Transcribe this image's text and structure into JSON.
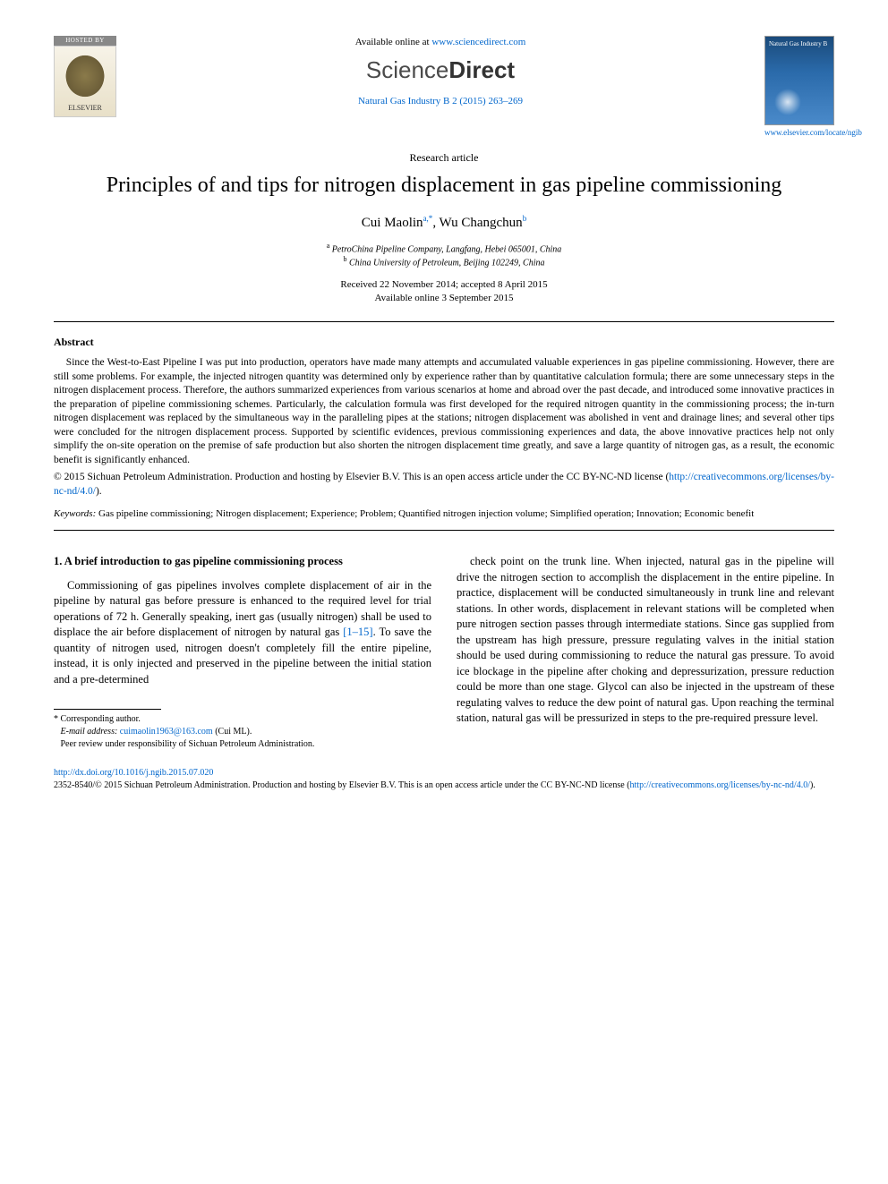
{
  "header": {
    "hosted_label": "HOSTED BY",
    "elsevier_name": "ELSEVIER",
    "available_prefix": "Available online at ",
    "available_url": "www.sciencedirect.com",
    "sd_logo_light": "Science",
    "sd_logo_bold": "Direct",
    "journal_ref": "Natural Gas Industry B 2 (2015) 263–269",
    "cover_title": "Natural Gas Industry B",
    "cover_link": "www.elsevier.com/locate/ngib"
  },
  "meta": {
    "article_type": "Research article",
    "title": "Principles of and tips for nitrogen displacement in gas pipeline commissioning",
    "authors_html": "Cui Maolin<sup>a,*</sup>, Wu Changchun<sup>b</sup>",
    "author1": "Cui Maolin",
    "author1_sup": "a,*",
    "author2": "Wu Changchun",
    "author2_sup": "b",
    "affil_a_sup": "a",
    "affil_a": "PetroChina Pipeline Company, Langfang, Hebei 065001, China",
    "affil_b_sup": "b",
    "affil_b": "China University of Petroleum, Beijing 102249, China",
    "dates_line1": "Received 22 November 2014; accepted 8 April 2015",
    "dates_line2": "Available online 3 September 2015"
  },
  "abstract": {
    "heading": "Abstract",
    "body": "Since the West-to-East Pipeline I was put into production, operators have made many attempts and accumulated valuable experiences in gas pipeline commissioning. However, there are still some problems. For example, the injected nitrogen quantity was determined only by experience rather than by quantitative calculation formula; there are some unnecessary steps in the nitrogen displacement process. Therefore, the authors summarized experiences from various scenarios at home and abroad over the past decade, and introduced some innovative practices in the preparation of pipeline commissioning schemes. Particularly, the calculation formula was first developed for the required nitrogen quantity in the commissioning process; the in-turn nitrogen displacement was replaced by the simultaneous way in the paralleling pipes at the stations; nitrogen displacement was abolished in vent and drainage lines; and several other tips were concluded for the nitrogen displacement process. Supported by scientific evidences, previous commissioning experiences and data, the above innovative practices help not only simplify the on-site operation on the premise of safe production but also shorten the nitrogen displacement time greatly, and save a large quantity of nitrogen gas, as a result, the economic benefit is significantly enhanced.",
    "copyright_line": "© 2015 Sichuan Petroleum Administration. Production and hosting by Elsevier B.V. This is an open access article under the CC BY-NC-ND license (",
    "license_url_text": "http://creativecommons.org/licenses/by-nc-nd/4.0/",
    "copyright_tail": ")."
  },
  "keywords": {
    "label": "Keywords:",
    "list": " Gas pipeline commissioning; Nitrogen displacement; Experience; Problem; Quantified nitrogen injection volume; Simplified operation; Innovation; Economic benefit"
  },
  "section1": {
    "heading": "1. A brief introduction to gas pipeline commissioning process",
    "col1_pre": "Commissioning of gas pipelines involves complete displacement of air in the pipeline by natural gas before pressure is enhanced to the required level for trial operations of 72 h. Generally speaking, inert gas (usually nitrogen) shall be used to displace the air before displacement of nitrogen by natural gas ",
    "ref_link": "[1–15]",
    "col1_post": ". To save the quantity of nitrogen used, nitrogen doesn't completely fill the entire pipeline, instead, it is only injected and preserved in the pipeline between the initial station and a pre-determined",
    "col2": "check point on the trunk line. When injected, natural gas in the pipeline will drive the nitrogen section to accomplish the displacement in the entire pipeline. In practice, displacement will be conducted simultaneously in trunk line and relevant stations. In other words, displacement in relevant stations will be completed when pure nitrogen section passes through intermediate stations. Since gas supplied from the upstream has high pressure, pressure regulating valves in the initial station should be used during commissioning to reduce the natural gas pressure. To avoid ice blockage in the pipeline after choking and depressurization, pressure reduction could be more than one stage. Glycol can also be injected in the upstream of these regulating valves to reduce the dew point of natural gas. Upon reaching the terminal station, natural gas will be pressurized in steps to the pre-required pressure level."
  },
  "footnotes": {
    "corr": "* Corresponding author.",
    "email_label": "E-mail address:",
    "email": "cuimaolin1963@163.com",
    "email_tail": " (Cui ML).",
    "peer": "Peer review under responsibility of Sichuan Petroleum Administration."
  },
  "footer": {
    "doi": "http://dx.doi.org/10.1016/j.ngib.2015.07.020",
    "issn_line": "2352-8540/© 2015 Sichuan Petroleum Administration. Production and hosting by Elsevier B.V. This is an open access article under the CC BY-NC-ND license (",
    "license_url_text": "http://creativecommons.org/licenses/by-nc-nd/4.0/",
    "tail": ")."
  },
  "colors": {
    "link": "#0066cc",
    "text": "#000000",
    "bg": "#ffffff"
  }
}
